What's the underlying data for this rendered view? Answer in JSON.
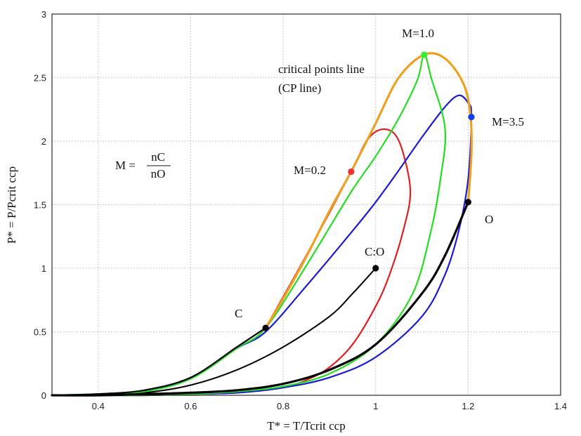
{
  "chart_data": {
    "type": "line",
    "xlabel": "T* = T/Tcrit ccp",
    "ylabel": "P* = P/Pcrit ccp",
    "xlim": [
      0.3,
      1.4
    ],
    "ylim": [
      0,
      3
    ],
    "grid": true,
    "x_ticks": [
      "0.4",
      "0.6",
      "0.8",
      "1",
      "1.2",
      "1.4"
    ],
    "y_ticks": [
      "0",
      "0.5",
      "1",
      "1.5",
      "2",
      "2.5",
      "3"
    ],
    "colors": {
      "cp_line": "#f0a020",
      "m1": "#22dd22",
      "m35": "#1a1ad0",
      "m02": "#dd2020",
      "pure": "#000000",
      "m1_point": "#33ee33",
      "m35_point": "#1040ee",
      "m02_point": "#ee3030"
    },
    "series": [
      {
        "key": "cp",
        "x": [
          0.762,
          0.8,
          0.85,
          0.9,
          0.947,
          1.0,
          1.05,
          1.105,
          1.15,
          1.19,
          1.205,
          1.207,
          1.2
        ],
        "y": [
          0.53,
          0.76,
          1.09,
          1.45,
          1.76,
          2.14,
          2.5,
          2.68,
          2.65,
          2.45,
          2.2,
          1.9,
          1.52
        ]
      },
      {
        "key": "m1",
        "x": [
          0.3,
          0.4,
          0.5,
          0.6,
          0.7,
          0.762,
          0.85,
          0.947,
          1.0,
          1.05,
          1.09,
          1.105,
          1.12,
          1.15,
          1.14,
          1.12,
          1.08,
          1.0,
          0.9,
          0.8,
          0.7,
          0.6,
          0.5,
          0.4,
          0.3
        ],
        "y": [
          0.0,
          0.01,
          0.03,
          0.13,
          0.37,
          0.53,
          1.02,
          1.6,
          1.88,
          2.18,
          2.48,
          2.68,
          2.5,
          2.1,
          1.7,
          1.3,
          0.8,
          0.4,
          0.17,
          0.07,
          0.03,
          0.01,
          0.0,
          0.0,
          0.0
        ]
      },
      {
        "key": "m35",
        "x": [
          0.3,
          0.4,
          0.5,
          0.6,
          0.7,
          0.762,
          0.85,
          0.947,
          1.0,
          1.05,
          1.1,
          1.15,
          1.18,
          1.2,
          1.207,
          1.2,
          1.18,
          1.15,
          1.1,
          1.0,
          0.9,
          0.8,
          0.7,
          0.6,
          0.5,
          0.4,
          0.3
        ],
        "y": [
          0.0,
          0.01,
          0.04,
          0.14,
          0.37,
          0.5,
          0.86,
          1.28,
          1.52,
          1.77,
          2.03,
          2.27,
          2.36,
          2.3,
          2.2,
          1.7,
          1.3,
          0.95,
          0.62,
          0.3,
          0.14,
          0.06,
          0.02,
          0.01,
          0.0,
          0.0,
          0.0
        ]
      },
      {
        "key": "m02",
        "x": [
          0.762,
          0.85,
          0.947,
          0.98,
          1.01,
          1.04,
          1.06,
          1.075,
          1.06,
          1.03,
          1.0,
          0.95,
          0.9,
          0.85,
          0.8,
          0.7,
          0.6,
          0.5,
          0.4,
          0.3
        ],
        "y": [
          0.53,
          1.1,
          1.76,
          2.0,
          2.09,
          2.06,
          1.9,
          1.6,
          1.3,
          0.95,
          0.7,
          0.4,
          0.22,
          0.12,
          0.06,
          0.02,
          0.01,
          0.0,
          0.0,
          0.0
        ]
      },
      {
        "key": "pure_c",
        "x": [
          0.3,
          0.4,
          0.5,
          0.6,
          0.7,
          0.762
        ],
        "y": [
          0.0,
          0.01,
          0.04,
          0.14,
          0.38,
          0.53
        ]
      },
      {
        "key": "pure_mid",
        "x": [
          0.3,
          0.4,
          0.5,
          0.6,
          0.7,
          0.8,
          0.9,
          0.95,
          1.0
        ],
        "y": [
          0.0,
          0.005,
          0.02,
          0.08,
          0.2,
          0.38,
          0.62,
          0.8,
          1.0
        ]
      },
      {
        "key": "pure_o",
        "x": [
          0.3,
          0.4,
          0.5,
          0.6,
          0.7,
          0.8,
          0.9,
          1.0,
          1.1,
          1.15,
          1.2
        ],
        "y": [
          0.0,
          0.0,
          0.01,
          0.02,
          0.04,
          0.09,
          0.2,
          0.4,
          0.8,
          1.1,
          1.52
        ]
      }
    ],
    "points": [
      {
        "key": "C",
        "x": 0.762,
        "y": 0.53,
        "color": "#000000"
      },
      {
        "key": "CO",
        "x": 1.0,
        "y": 1.0,
        "color": "#000000"
      },
      {
        "key": "O",
        "x": 1.2,
        "y": 1.52,
        "color": "#000000"
      },
      {
        "key": "M02",
        "x": 0.947,
        "y": 1.76,
        "color": "#ee3030"
      },
      {
        "key": "M10",
        "x": 1.105,
        "y": 2.68,
        "color": "#33ee33"
      },
      {
        "key": "M35",
        "x": 1.207,
        "y": 2.19,
        "color": "#1040ee"
      }
    ],
    "annotations": {
      "m10": "M=1.0",
      "m35": "M=3.5",
      "m02": "M=0.2",
      "cp_line_1": "critical points line",
      "cp_line_2": "(CP line)",
      "c": "C",
      "co": "C:O",
      "o": "O",
      "formula_lhs": "M =",
      "formula_num": "nC",
      "formula_den": "nO"
    }
  }
}
